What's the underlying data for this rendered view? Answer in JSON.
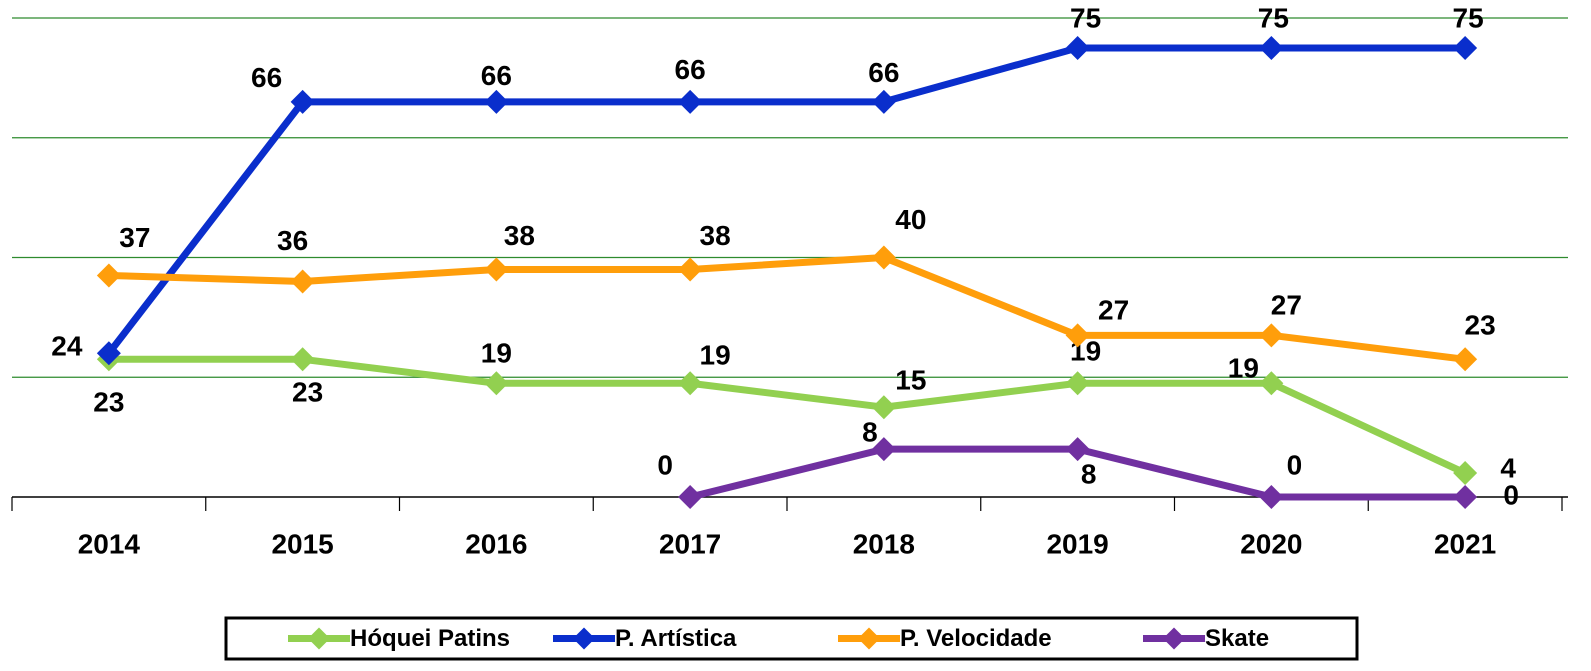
{
  "chart_data": {
    "type": "line",
    "categories": [
      "2014",
      "2015",
      "2016",
      "2017",
      "2018",
      "2019",
      "2020",
      "2021"
    ],
    "series": [
      {
        "name": "Hóquei Patins",
        "color": "#92d050",
        "values": [
          23,
          23,
          19,
          19,
          15,
          19,
          19,
          4
        ]
      },
      {
        "name": "P. Artística",
        "color": "#0a2ecc",
        "values": [
          24,
          66,
          66,
          66,
          66,
          75,
          75,
          75
        ]
      },
      {
        "name": "P. Velocidade",
        "color": "#ff9e0b",
        "values": [
          37,
          36,
          38,
          38,
          40,
          27,
          27,
          23
        ]
      },
      {
        "name": "Skate",
        "color": "#7030a0",
        "values": [
          null,
          null,
          null,
          0,
          8,
          8,
          0,
          0
        ]
      }
    ],
    "ylim": [
      0,
      80
    ],
    "yticks": [
      0,
      20,
      40,
      60,
      80
    ],
    "grid": true,
    "legend": "bottom"
  }
}
